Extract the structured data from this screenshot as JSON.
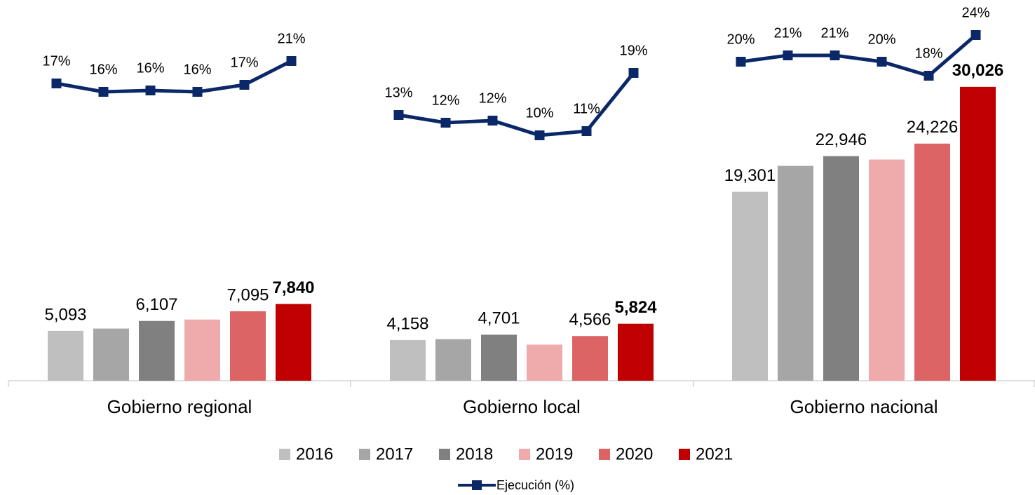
{
  "chart_data": {
    "type": "bar",
    "categories": [
      "Gobierno regional",
      "Gobierno local",
      "Gobierno nacional"
    ],
    "series": [
      {
        "name": "2016",
        "color": "#bfbfbf",
        "values": [
          5093,
          4158,
          19301
        ],
        "value_labels": [
          "5,093",
          "4,158",
          "19,301"
        ]
      },
      {
        "name": "2017",
        "color": "#a6a6a6",
        "values": [
          5330,
          4240,
          21950
        ],
        "value_labels": [
          null,
          null,
          null
        ]
      },
      {
        "name": "2018",
        "color": "#808080",
        "values": [
          6107,
          4701,
          22946
        ],
        "value_labels": [
          "6,107",
          "4,701",
          "22,946"
        ]
      },
      {
        "name": "2019",
        "color": "#efabab",
        "values": [
          6250,
          3690,
          22600
        ],
        "value_labels": [
          null,
          null,
          null
        ]
      },
      {
        "name": "2020",
        "color": "#dc6464",
        "values": [
          7095,
          4566,
          24226
        ],
        "value_labels": [
          "7,095",
          "4,566",
          "24,226"
        ]
      },
      {
        "name": "2021",
        "color": "#c00000",
        "values": [
          7840,
          5824,
          30026
        ],
        "value_labels": [
          "7,840",
          "5,824",
          "30,026"
        ],
        "label_bold": true
      },
      {
        "name": "Ejecución (%)",
        "type": "line",
        "axis": "y2",
        "color": "#0a2868",
        "values": [
          [
            17.3,
            16.1,
            16.3,
            16.1,
            17.1,
            20.5
          ],
          [
            12.8,
            11.7,
            12.0,
            9.9,
            10.5,
            18.8
          ],
          [
            20.4,
            21.3,
            21.3,
            20.4,
            18.4,
            24.2
          ]
        ],
        "value_labels": [
          [
            "17%",
            "16%",
            "16%",
            "16%",
            "17%",
            "21%"
          ],
          [
            "13%",
            "12%",
            "12%",
            "10%",
            "11%",
            "19%"
          ],
          [
            "20%",
            "21%",
            "21%",
            "20%",
            "18%",
            "24%"
          ]
        ]
      }
    ],
    "ylim": [
      0,
      38900
    ],
    "y2lim": [
      -25.1,
      29.2
    ],
    "legend": "bottom"
  }
}
